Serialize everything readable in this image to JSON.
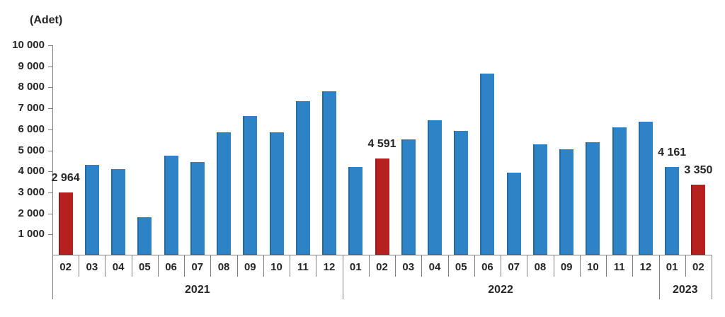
{
  "chart_data": {
    "type": "bar",
    "unit_label": "(Adet)",
    "grid": false,
    "legend": null,
    "ylim": [
      0,
      10000
    ],
    "ytick_values": [
      1000,
      2000,
      3000,
      4000,
      5000,
      6000,
      7000,
      8000,
      9000,
      10000
    ],
    "ytick_labels": [
      "1 000",
      "2 000",
      "3 000",
      "4 000",
      "5 000",
      "6 000",
      "7 000",
      "8 000",
      "9 000",
      "10 000"
    ],
    "years": [
      {
        "label": "2021",
        "span": 11
      },
      {
        "label": "2022",
        "span": 12
      },
      {
        "label": "2023",
        "span": 2
      }
    ],
    "bars": [
      {
        "year": "2021",
        "month": "02",
        "value": 2964,
        "label": "2 964",
        "highlight": true
      },
      {
        "year": "2021",
        "month": "03",
        "value": 4260,
        "highlight": false
      },
      {
        "year": "2021",
        "month": "04",
        "value": 4060,
        "highlight": false
      },
      {
        "year": "2021",
        "month": "05",
        "value": 1770,
        "highlight": false
      },
      {
        "year": "2021",
        "month": "06",
        "value": 4715,
        "highlight": false
      },
      {
        "year": "2021",
        "month": "07",
        "value": 4425,
        "highlight": false
      },
      {
        "year": "2021",
        "month": "08",
        "value": 5830,
        "highlight": false
      },
      {
        "year": "2021",
        "month": "09",
        "value": 6590,
        "highlight": false
      },
      {
        "year": "2021",
        "month": "10",
        "value": 5830,
        "highlight": false
      },
      {
        "year": "2021",
        "month": "11",
        "value": 7290,
        "highlight": false
      },
      {
        "year": "2021",
        "month": "12",
        "value": 7780,
        "highlight": false
      },
      {
        "year": "2022",
        "month": "01",
        "value": 4190,
        "highlight": false
      },
      {
        "year": "2022",
        "month": "02",
        "value": 4591,
        "label": "4 591",
        "highlight": true
      },
      {
        "year": "2022",
        "month": "03",
        "value": 5500,
        "highlight": false
      },
      {
        "year": "2022",
        "month": "04",
        "value": 6390,
        "highlight": false
      },
      {
        "year": "2022",
        "month": "05",
        "value": 5900,
        "highlight": false
      },
      {
        "year": "2022",
        "month": "06",
        "value": 8610,
        "highlight": false
      },
      {
        "year": "2022",
        "month": "07",
        "value": 3910,
        "highlight": false
      },
      {
        "year": "2022",
        "month": "08",
        "value": 5240,
        "highlight": false
      },
      {
        "year": "2022",
        "month": "09",
        "value": 5030,
        "highlight": false
      },
      {
        "year": "2022",
        "month": "10",
        "value": 5340,
        "highlight": false
      },
      {
        "year": "2022",
        "month": "11",
        "value": 6050,
        "highlight": false
      },
      {
        "year": "2022",
        "month": "12",
        "value": 6330,
        "highlight": false
      },
      {
        "year": "2023",
        "month": "01",
        "value": 4161,
        "label": "4 161",
        "highlight": false
      },
      {
        "year": "2023",
        "month": "02",
        "value": 3350,
        "label": "3 350",
        "highlight": true
      }
    ],
    "colors": {
      "bar": "#2E82C6",
      "highlight": "#B6201F",
      "axis": "#808080",
      "text": "#262626"
    }
  }
}
